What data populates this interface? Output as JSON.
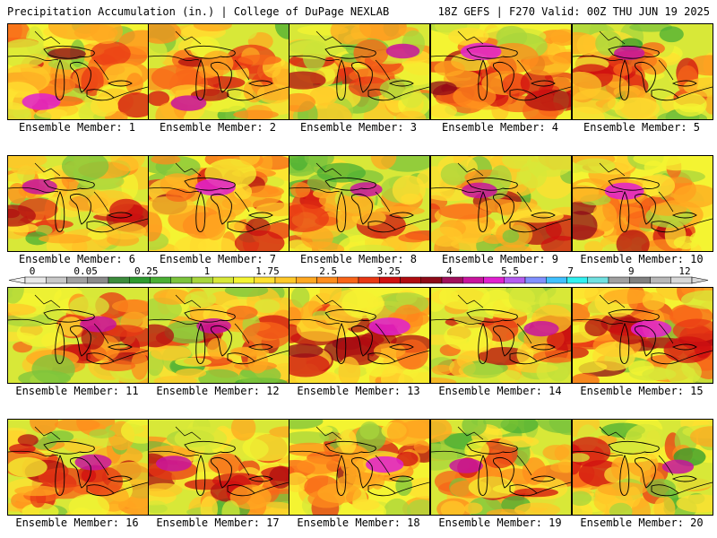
{
  "header": {
    "title_left": "Precipitation Accumulation (in.) | College of DuPage NEXLAB",
    "title_right": "18Z GEFS | F270 Valid: 00Z THU JUN 19 2025"
  },
  "colorbar": {
    "labels": [
      "0",
      "0.05",
      "0.25",
      "1",
      "1.75",
      "2.5",
      "3.25",
      "4",
      "5.5",
      "7",
      "9",
      "12"
    ],
    "colors": [
      "#e8e8e8",
      "#c8c8c8",
      "#a0a0a0",
      "#8a8a8a",
      "#3c8c3c",
      "#2e9a2e",
      "#4aaf34",
      "#7cc43c",
      "#a8d63c",
      "#d8e838",
      "#f4f432",
      "#ffe030",
      "#ffc828",
      "#ffa820",
      "#ff8c1c",
      "#f86418",
      "#e83814",
      "#d01010",
      "#b00c10",
      "#8e0a18",
      "#a0105c",
      "#c8149e",
      "#e020d0",
      "#b45cf0",
      "#8090ff",
      "#40c0ff",
      "#30f0f0",
      "#70e0e0",
      "#a0a0a0",
      "#808080",
      "#b8b8b8",
      "#d8d8d8"
    ]
  },
  "panels": [
    {
      "label": "Ensemble Member: 1",
      "intensity": 0.72,
      "seed": 11
    },
    {
      "label": "Ensemble Member: 2",
      "intensity": 0.62,
      "seed": 23
    },
    {
      "label": "Ensemble Member: 3",
      "intensity": 0.55,
      "seed": 37
    },
    {
      "label": "Ensemble Member: 4",
      "intensity": 0.8,
      "seed": 41
    },
    {
      "label": "Ensemble Member: 5",
      "intensity": 0.45,
      "seed": 53
    },
    {
      "label": "Ensemble Member: 6",
      "intensity": 0.6,
      "seed": 67
    },
    {
      "label": "Ensemble Member: 7",
      "intensity": 0.78,
      "seed": 71
    },
    {
      "label": "Ensemble Member: 8",
      "intensity": 0.5,
      "seed": 89
    },
    {
      "label": "Ensemble Member: 9",
      "intensity": 0.62,
      "seed": 97
    },
    {
      "label": "Ensemble Member: 10",
      "intensity": 0.75,
      "seed": 103
    },
    {
      "label": "Ensemble Member: 11",
      "intensity": 0.65,
      "seed": 113
    },
    {
      "label": "Ensemble Member: 12",
      "intensity": 0.58,
      "seed": 127
    },
    {
      "label": "Ensemble Member: 13",
      "intensity": 0.82,
      "seed": 131
    },
    {
      "label": "Ensemble Member: 14",
      "intensity": 0.6,
      "seed": 149
    },
    {
      "label": "Ensemble Member: 15",
      "intensity": 0.8,
      "seed": 151
    },
    {
      "label": "Ensemble Member: 16",
      "intensity": 0.66,
      "seed": 163
    },
    {
      "label": "Ensemble Member: 17",
      "intensity": 0.62,
      "seed": 173
    },
    {
      "label": "Ensemble Member: 18",
      "intensity": 0.7,
      "seed": 181
    },
    {
      "label": "Ensemble Member: 19",
      "intensity": 0.55,
      "seed": 191
    },
    {
      "label": "Ensemble Member: 20",
      "intensity": 0.48,
      "seed": 199
    }
  ]
}
